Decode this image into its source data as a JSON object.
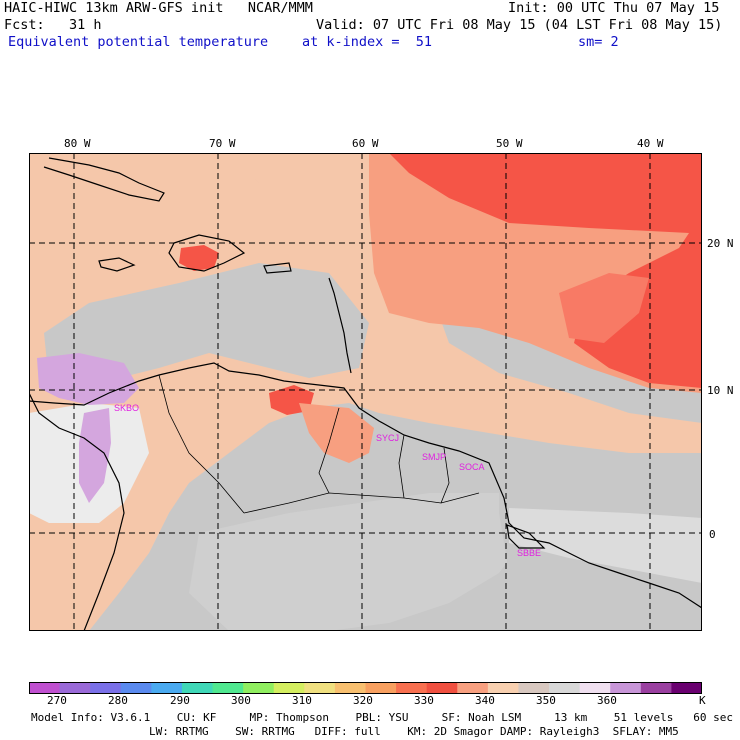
{
  "header": {
    "model_title": "HAIC-HIWC 13km ARW-GFS init   NCAR/MMM",
    "init": "Init: 00 UTC Thu 07 May 15",
    "fcst": "Fcst:   31 h",
    "valid": "Valid: 07 UTC Fri 08 May 15 (04 LST Fri 08 May 15)",
    "field": "Equivalent potential temperature",
    "level": "at k-index =  51",
    "smooth": "sm= 2"
  },
  "map": {
    "lon_labels": [
      "80 W",
      "70 W",
      "60 W",
      "50 W",
      "40 W"
    ],
    "lat_labels": [
      "20 N",
      "10 N",
      "0"
    ],
    "stations": [
      "SKBO",
      "SYCJ",
      "SMJP",
      "SOCA",
      "SBBE"
    ],
    "colors": {
      "hot_red": "#f55547",
      "salmon": "#f79f80",
      "peach": "#f5c7aa",
      "grey": "#c8c8c8",
      "light_grey": "#dcdcdc",
      "lilac": "#d4a6de",
      "station": "#e020e0"
    }
  },
  "colorbar": {
    "labels": [
      "270",
      "280",
      "290",
      "300",
      "310",
      "320",
      "330",
      "340",
      "350",
      "360"
    ],
    "unit": "K",
    "colors": [
      "#c050d0",
      "#9a6ad8",
      "#7a70e8",
      "#5a8aef",
      "#4aaaf0",
      "#40d8b8",
      "#50e890",
      "#90ee60",
      "#d4ee60",
      "#f0e080",
      "#f8c070",
      "#f8a060",
      "#f87050",
      "#f05040",
      "#f8a080",
      "#f8d0b0",
      "#d8c8c0",
      "#d8d8d8",
      "#f0e0f0",
      "#c896d8",
      "#9a40a0",
      "#6a0070"
    ]
  },
  "footer": {
    "line1": "Model Info: V3.6.1    CU: KF     MP: Thompson    PBL: YSU     SF: Noah LSM     13 km    51 levels   60 sec",
    "line2": "LW: RRTMG    SW: RRTMG   DIFF: full    KM: 2D Smagor DAMP: Rayleigh3  SFLAY: MM5"
  }
}
